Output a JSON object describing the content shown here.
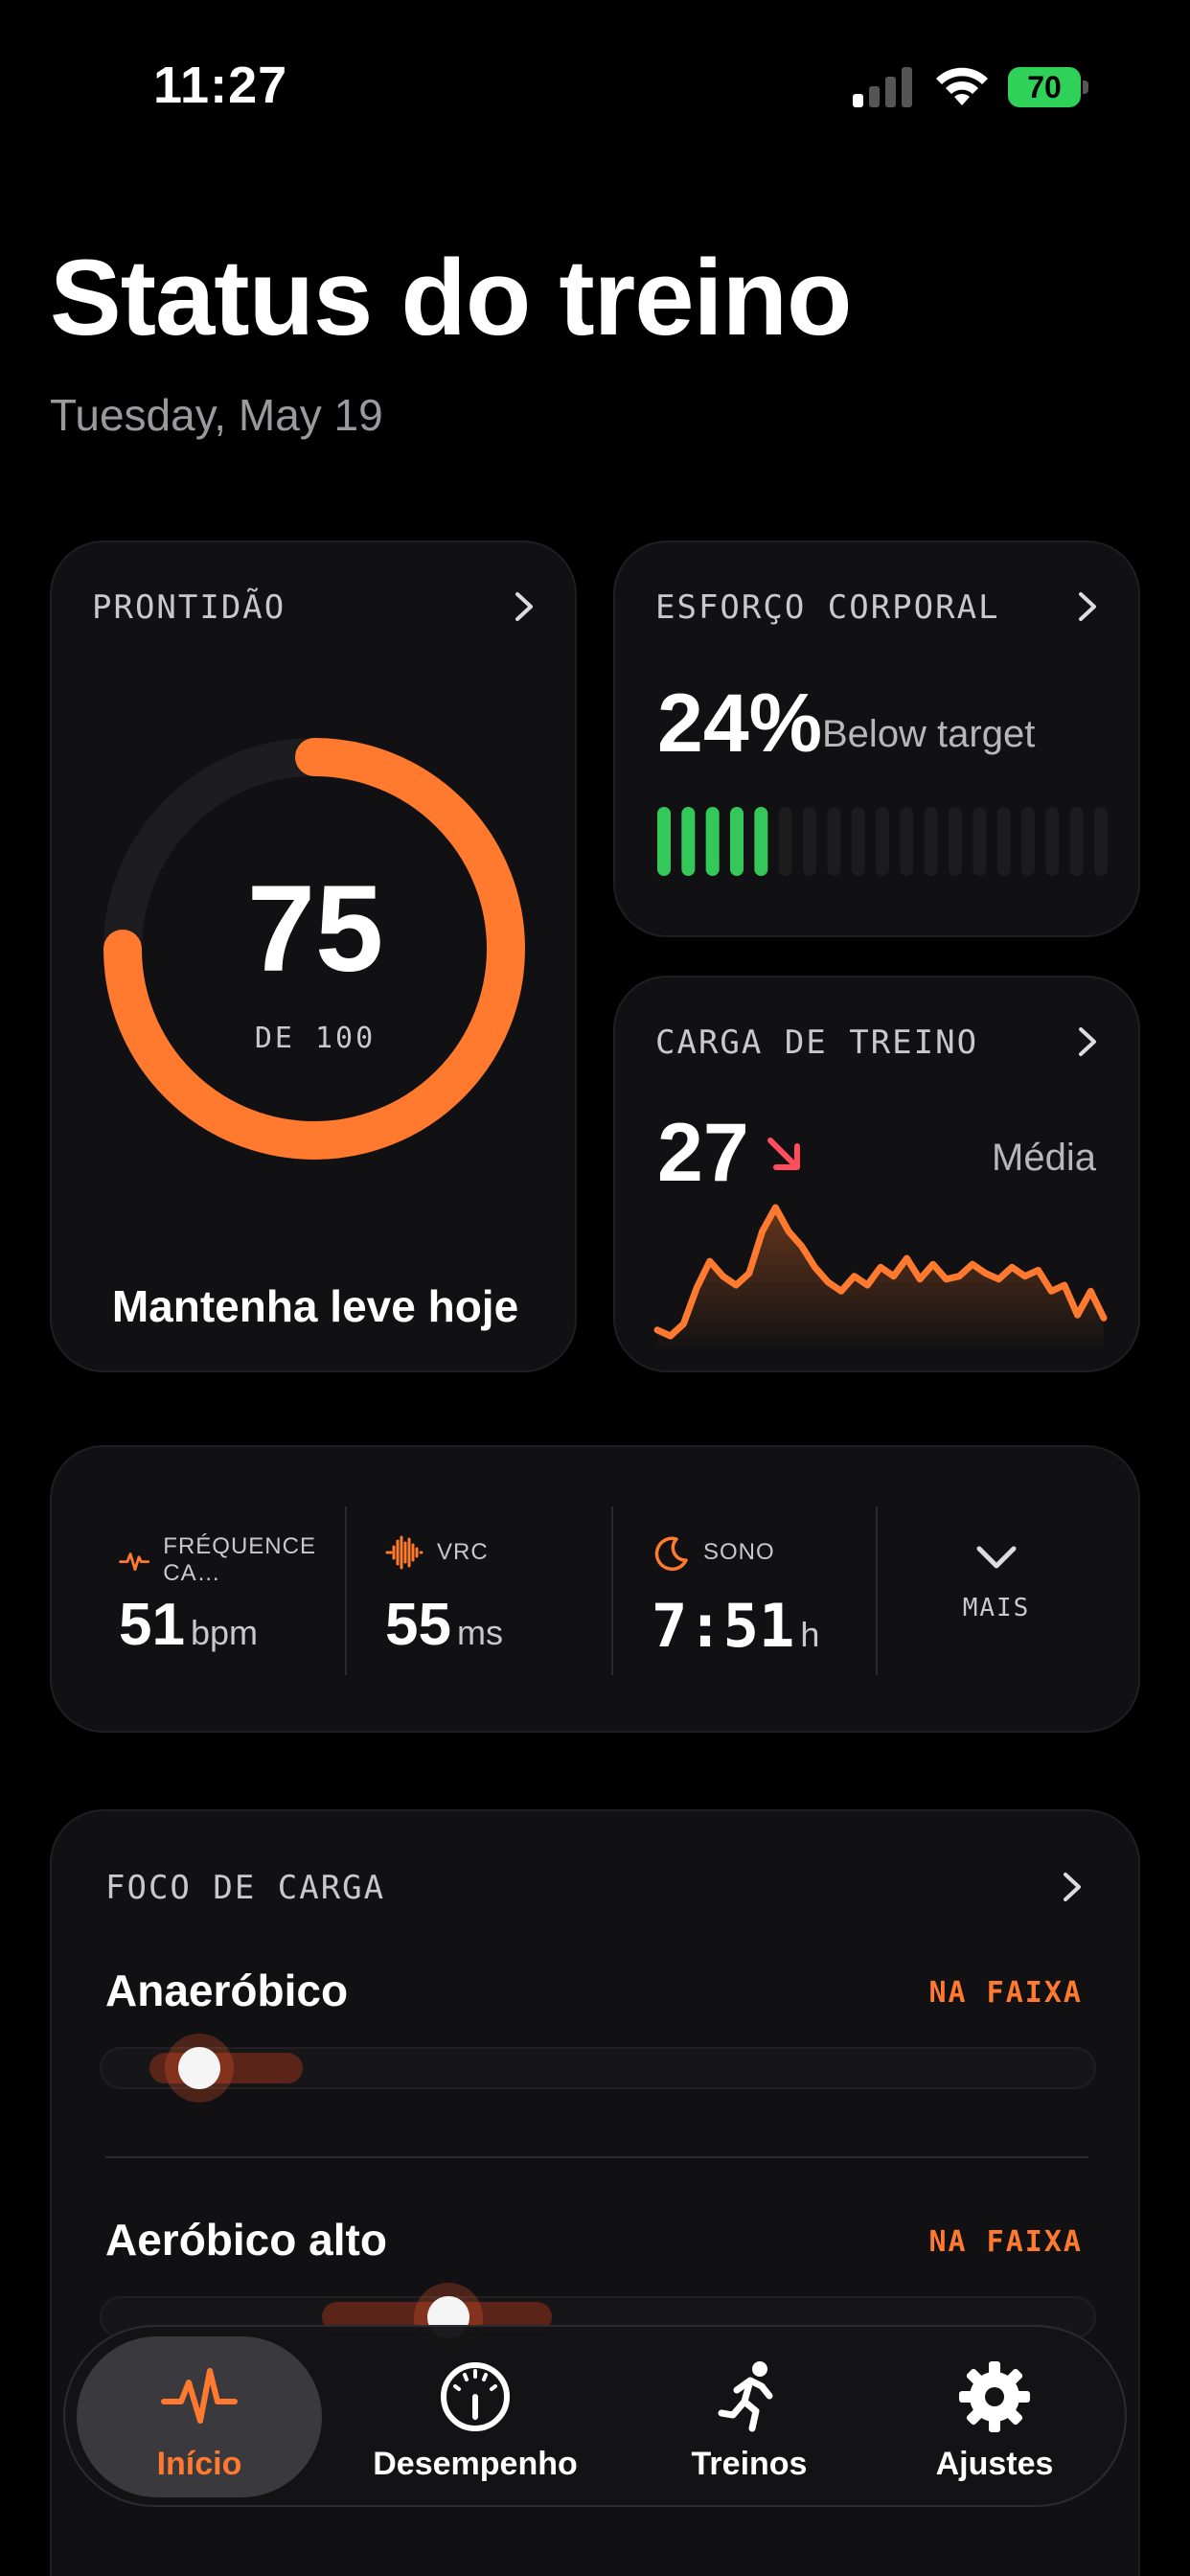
{
  "status_bar": {
    "time": "11:27",
    "battery": "70"
  },
  "header": {
    "title": "Status do treino",
    "date": "Tuesday, May 19"
  },
  "readiness": {
    "label": "PRONTIDÃO",
    "value": "75",
    "max_label": "DE 100",
    "score_fraction": 0.75,
    "message": "Mantenha leve hoje"
  },
  "strain": {
    "label": "ESFORÇO CORPORAL",
    "value": "24%",
    "note": "Below target",
    "filled_bars": 5,
    "total_bars": 19
  },
  "training_load": {
    "label": "CARGA DE TREINO",
    "value": "27",
    "note": "Média",
    "trend": [
      14,
      10,
      18,
      42,
      60,
      50,
      44,
      52,
      80,
      96,
      80,
      70,
      56,
      46,
      40,
      50,
      44,
      56,
      50,
      62,
      48,
      58,
      48,
      50,
      58,
      52,
      48,
      56,
      50,
      54,
      40,
      44,
      24,
      40,
      22
    ]
  },
  "metrics": [
    {
      "label": "FRÉQUENCE CA…",
      "value": "51",
      "unit": "bpm",
      "icon": "heart-pulse-icon"
    },
    {
      "label": "VRC",
      "value": "55",
      "unit": "ms",
      "icon": "waveform-icon"
    },
    {
      "label": "SONO",
      "value": "7:51",
      "unit": "h",
      "icon": "moon-icon"
    }
  ],
  "more_label": "MAIS",
  "load_focus": {
    "label": "FOCO DE CARGA",
    "rows": [
      {
        "name": "Anaeróbico",
        "status": "NA FAIXA"
      },
      {
        "name": "Aeróbico alto",
        "status": "NA FAIXA"
      }
    ]
  },
  "tabs": [
    {
      "label": "Início",
      "icon": "pulse-icon",
      "active": true
    },
    {
      "label": "Desempenho",
      "icon": "gauge-icon",
      "active": false
    },
    {
      "label": "Treinos",
      "icon": "runner-icon",
      "active": false
    },
    {
      "label": "Ajustes",
      "icon": "gear-icon",
      "active": false
    }
  ],
  "colors": {
    "accent": "#ff7a2e",
    "green": "#34c759",
    "battery": "#2fd158"
  }
}
